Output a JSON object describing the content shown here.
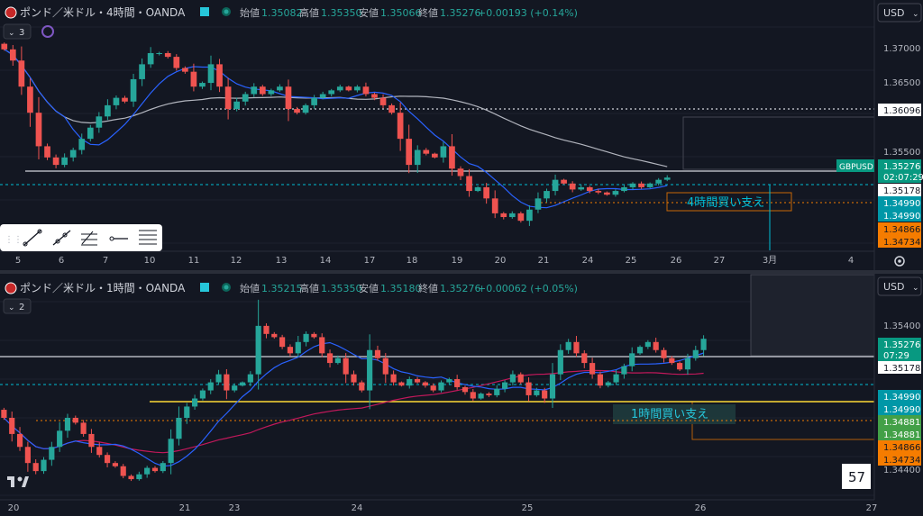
{
  "colors": {
    "background": "#131722",
    "up": "#26a69a",
    "down": "#ef5350",
    "ma_blue": "#2962ff",
    "ma_grey": "#b2b5be",
    "ma_red": "#c2185b",
    "support_orange": "#f57c00",
    "teal": "#00bcd4",
    "badge_green": "#089981"
  },
  "currency_button": "USD",
  "top": {
    "title": "ポンド／米ドル・4時間・OANDA",
    "ohlc": {
      "o_label": "始値",
      "o": "1.35082",
      "h_label": "高値",
      "h": "1.35350",
      "l_label": "安値",
      "l": "1.35066",
      "c_label": "終値",
      "c": "1.35276",
      "chg": "+0.00193 (+0.14%)"
    },
    "indicator_count": "3",
    "support_label": "4時間買い支え",
    "symbol_tag": "GBPUSD",
    "price_ticks": [
      "1.37000",
      "1.36500",
      "1.35500"
    ],
    "badges": {
      "line_level": "1.36096",
      "last": "1.35276",
      "countdown": "02:07:29",
      "white": "1.35178",
      "teal1": "1.34990",
      "teal2": "1.34990",
      "orange1": "1.34866",
      "orange2": "1.34734"
    },
    "x_labels": [
      "5",
      "6",
      "7",
      "10",
      "11",
      "12",
      "13",
      "14",
      "17",
      "18",
      "19",
      "20",
      "21",
      "24",
      "25",
      "26",
      "27",
      "3月",
      "4"
    ]
  },
  "bottom": {
    "title": "ポンド／米ドル・1時間・OANDA",
    "ohlc": {
      "o_label": "始値",
      "o": "1.35215",
      "h_label": "高値",
      "h": "1.35350",
      "l_label": "安値",
      "l": "1.35180",
      "c_label": "終値",
      "c": "1.35276",
      "chg": "+0.00062 (+0.05%)"
    },
    "indicator_count": "2",
    "support_label": "1時間買い支え",
    "price_ticks": [
      "1.35400",
      "1.34400"
    ],
    "badges": {
      "last": "1.35276",
      "countdown": "07:29",
      "white": "1.35178",
      "teal1": "1.34990",
      "teal2": "1.34990",
      "green1": "1.34881",
      "green2": "1.34881",
      "orange1": "1.34866",
      "orange2": "1.34734"
    },
    "x_labels": [
      "20",
      "21",
      "23",
      "24",
      "25",
      "26",
      "27"
    ],
    "corner_number": "57"
  },
  "chart_data": [
    {
      "type": "candlestick",
      "title": "ポンド／米ドル・4時間・OANDA",
      "ylim": [
        1.344,
        1.373
      ],
      "overlays": [
        "moving-average-blue",
        "moving-average-grey"
      ],
      "levels": [
        1.36096,
        1.35178,
        1.3499
      ],
      "support_zone": [
        1.34734,
        1.34866
      ],
      "closes": [
        1.37,
        1.3685,
        1.365,
        1.3615,
        1.357,
        1.3555,
        1.3545,
        1.3555,
        1.3565,
        1.358,
        1.3595,
        1.361,
        1.3625,
        1.3635,
        1.363,
        1.366,
        1.368,
        1.3695,
        1.3695,
        1.369,
        1.3675,
        1.367,
        1.365,
        1.3655,
        1.368,
        1.365,
        1.362,
        1.363,
        1.364,
        1.365,
        1.364,
        1.3645,
        1.365,
        1.362,
        1.3615,
        1.3625,
        1.3635,
        1.364,
        1.3645,
        1.365,
        1.3645,
        1.365,
        1.364,
        1.3635,
        1.3625,
        1.3615,
        1.358,
        1.3545,
        1.3565,
        1.356,
        1.3555,
        1.357,
        1.354,
        1.353,
        1.351,
        1.3515,
        1.35,
        1.348,
        1.3475,
        1.348,
        1.347,
        1.3485,
        1.35,
        1.351,
        1.3525,
        1.352,
        1.3512,
        1.3515,
        1.351,
        1.3508,
        1.3505,
        1.351,
        1.3515,
        1.352,
        1.3515,
        1.352,
        1.3525,
        1.3528
      ]
    },
    {
      "type": "candlestick",
      "title": "ポンド／米ドル・1時間・OANDA",
      "ylim": [
        1.343,
        1.355
      ],
      "overlays": [
        "moving-average-blue",
        "moving-average-red"
      ],
      "levels": [
        1.35178,
        1.3499,
        1.34881
      ],
      "support_zone": [
        1.34734,
        1.34866
      ],
      "closes": [
        1.3478,
        1.3468,
        1.346,
        1.345,
        1.3445,
        1.3452,
        1.346,
        1.347,
        1.3478,
        1.3475,
        1.3468,
        1.346,
        1.3455,
        1.345,
        1.3448,
        1.3442,
        1.344,
        1.3443,
        1.3447,
        1.3445,
        1.345,
        1.3465,
        1.3478,
        1.3485,
        1.349,
        1.3495,
        1.35,
        1.3505,
        1.3495,
        1.3498,
        1.35,
        1.3505,
        1.3535,
        1.353,
        1.3528,
        1.3522,
        1.3518,
        1.3525,
        1.353,
        1.3528,
        1.3518,
        1.3512,
        1.3515,
        1.3505,
        1.35,
        1.3495,
        1.352,
        1.3515,
        1.3505,
        1.35,
        1.3498,
        1.3502,
        1.35,
        1.3498,
        1.3495,
        1.35,
        1.3502,
        1.3497,
        1.3494,
        1.349,
        1.3493,
        1.3492,
        1.3496,
        1.35,
        1.3505,
        1.35,
        1.3492,
        1.3495,
        1.349,
        1.3505,
        1.352,
        1.3525,
        1.3518,
        1.3512,
        1.3505,
        1.3498,
        1.35,
        1.3505,
        1.351,
        1.3518,
        1.3522,
        1.3525,
        1.352,
        1.3515,
        1.3512,
        1.3508,
        1.3515,
        1.352,
        1.3527
      ]
    }
  ]
}
